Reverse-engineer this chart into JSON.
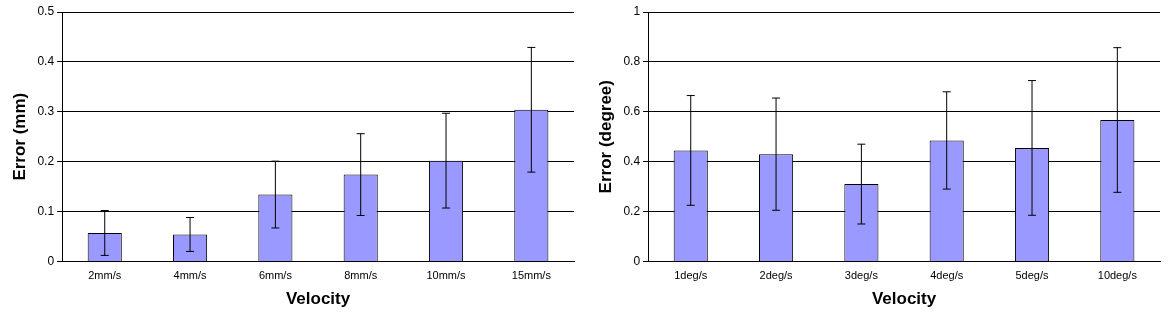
{
  "chart_data": [
    {
      "type": "bar",
      "xlabel": "Velocity",
      "ylabel": "Error (mm)",
      "categories": [
        "2mm/s",
        "4mm/s",
        "6mm/s",
        "8mm/s",
        "10mm/s",
        "15mm/s"
      ],
      "color": "#9999ff",
      "values": [
        0.057,
        0.054,
        0.134,
        0.174,
        0.202,
        0.304
      ],
      "errors": [
        0.045,
        0.034,
        0.067,
        0.082,
        0.095,
        0.125
      ],
      "ylim": [
        0,
        0.5
      ],
      "yticks": [
        0,
        0.1,
        0.2,
        0.3,
        0.4,
        0.5
      ],
      "grid": "y",
      "legend": false
    },
    {
      "type": "bar",
      "xlabel": "Velocity",
      "ylabel": "Error (degree)",
      "categories": [
        "1deg/s",
        "2deg/s",
        "3deg/s",
        "4deg/s",
        "5deg/s",
        "10deg/s"
      ],
      "color": "#9999ff",
      "values": [
        0.445,
        0.43,
        0.31,
        0.485,
        0.455,
        0.567
      ],
      "errors": [
        0.22,
        0.225,
        0.16,
        0.195,
        0.27,
        0.29
      ],
      "ylim": [
        0,
        1
      ],
      "yticks": [
        0,
        0.2,
        0.4,
        0.6,
        0.8,
        1
      ],
      "grid": "y",
      "legend": false
    }
  ]
}
